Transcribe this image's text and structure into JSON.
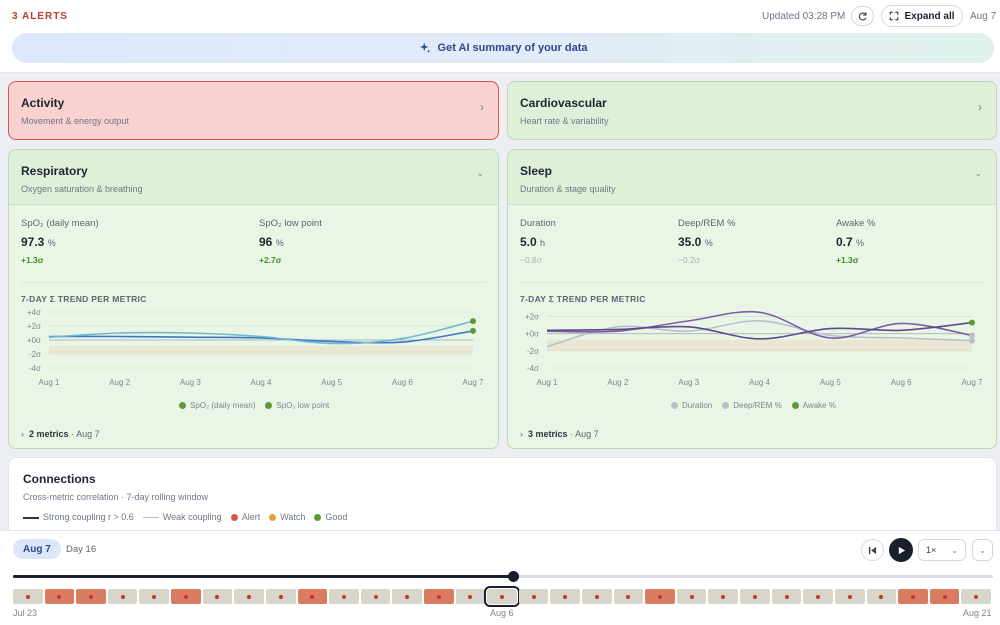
{
  "topbar": {
    "alerts": "3 ALERTS",
    "updated": "Updated 03:28 PM",
    "expand_label": "Expand all",
    "date": "Aug 7",
    "ai_summary": "Get AI summary of your data"
  },
  "panels": {
    "activity": {
      "title": "Activity",
      "subtitle": "Movement & energy output",
      "status": "alert"
    },
    "cardiovascular": {
      "title": "Cardiovascular",
      "subtitle": "Heart rate & variability",
      "status": "good"
    },
    "respiratory": {
      "title": "Respiratory",
      "subtitle": "Oxygen saturation & breathing",
      "metrics": [
        {
          "label": "SpO₂ (daily mean)",
          "value": "97.3",
          "unit": "%",
          "delta": "+1.3σ"
        },
        {
          "label": "SpO₂ low point",
          "value": "96",
          "unit": "%",
          "delta": "+2.7σ"
        }
      ],
      "trend_title": "7-DAY Σ TREND PER METRIC",
      "y_ticks": [
        "+4σ",
        "+2σ",
        "+0σ",
        "-2σ",
        "-4σ"
      ],
      "x_ticks": [
        "Aug 1",
        "Aug 2",
        "Aug 3",
        "Aug 4",
        "Aug 5",
        "Aug 6",
        "Aug 7"
      ],
      "legend": [
        "SpO₂ (daily mean)",
        "SpO₂ low point"
      ],
      "footer_count": "2 metrics",
      "footer_date": "· Aug 7"
    },
    "sleep": {
      "title": "Sleep",
      "subtitle": "Duration & stage quality",
      "metrics": [
        {
          "label": "Duration",
          "value": "5.0",
          "unit": "h",
          "delta": "−0.8σ"
        },
        {
          "label": "Deep/REM %",
          "value": "35.0",
          "unit": "%",
          "delta": "−0.2σ"
        },
        {
          "label": "Awake %",
          "value": "0.7",
          "unit": "%",
          "delta": "+1.3σ"
        }
      ],
      "trend_title": "7-DAY Σ TREND PER METRIC",
      "y_ticks": [
        "+2σ",
        "+0σ",
        "-2σ",
        "-4σ"
      ],
      "x_ticks": [
        "Aug 1",
        "Aug 2",
        "Aug 3",
        "Aug 4",
        "Aug 5",
        "Aug 6",
        "Aug 7"
      ],
      "legend": [
        "Duration",
        "Deep/REM %",
        "Awake %"
      ],
      "footer_count": "3 metrics",
      "footer_date": "· Aug 7"
    }
  },
  "connections": {
    "title": "Connections",
    "subtitle": "Cross-metric correlation · 7-day rolling window",
    "legend": {
      "strong": "Strong coupling r > 0.6",
      "weak": "Weak coupling",
      "alert": "Alert",
      "watch": "Watch",
      "good": "Good"
    }
  },
  "timeline": {
    "current_date": "Aug 7",
    "day": "Day 16",
    "speed": "1×",
    "start_label": "Jul 23",
    "mid_label": "Aug 6",
    "end_label": "Aug 21",
    "progress": 0.51,
    "days": [
      "good",
      "alert",
      "alert",
      "good",
      "good",
      "alert",
      "good",
      "good",
      "good",
      "alert",
      "good",
      "good",
      "good",
      "alert",
      "good",
      "good",
      "good",
      "good",
      "good",
      "good",
      "alert",
      "good",
      "good",
      "good",
      "good",
      "good",
      "good",
      "good",
      "alert",
      "alert",
      "good"
    ],
    "selected_index": 15
  },
  "colors": {
    "alert": "#d9534f",
    "good": "#5a9a3a",
    "watch": "#e8a23a",
    "day_good": "#d8d6c8",
    "day_alert": "#d97c61",
    "resp_line1": "#3b78c4",
    "resp_line2": "#6fb7d8",
    "sleep_line1": "#b9c0cc",
    "sleep_line2": "#7b5ea7",
    "sleep_line3": "#5b4a8a"
  },
  "chart_data": [
    {
      "type": "line",
      "x": [
        "Aug 1",
        "Aug 2",
        "Aug 3",
        "Aug 4",
        "Aug 5",
        "Aug 6",
        "Aug 7"
      ],
      "ylim": [
        -4,
        4
      ],
      "series": [
        {
          "name": "SpO₂ (daily mean)",
          "values": [
            0.5,
            0.5,
            0.4,
            0.3,
            -0.2,
            -0.3,
            1.3
          ]
        },
        {
          "name": "SpO₂ low point",
          "values": [
            0.4,
            1.0,
            1.0,
            0.5,
            -0.5,
            0.2,
            2.7
          ]
        }
      ]
    },
    {
      "type": "line",
      "x": [
        "Aug 1",
        "Aug 2",
        "Aug 3",
        "Aug 4",
        "Aug 5",
        "Aug 6",
        "Aug 7"
      ],
      "ylim": [
        -4,
        3
      ],
      "series": [
        {
          "name": "Duration",
          "values": [
            -1.5,
            0.8,
            0.3,
            1.5,
            -0.2,
            -0.5,
            -0.8
          ]
        },
        {
          "name": "Deep/REM %",
          "values": [
            0.3,
            0.3,
            1.5,
            2.5,
            -0.5,
            1.2,
            -0.2
          ]
        },
        {
          "name": "Awake %",
          "values": [
            0.4,
            0.5,
            0.8,
            -0.6,
            0.6,
            0.4,
            1.3
          ]
        }
      ]
    }
  ]
}
